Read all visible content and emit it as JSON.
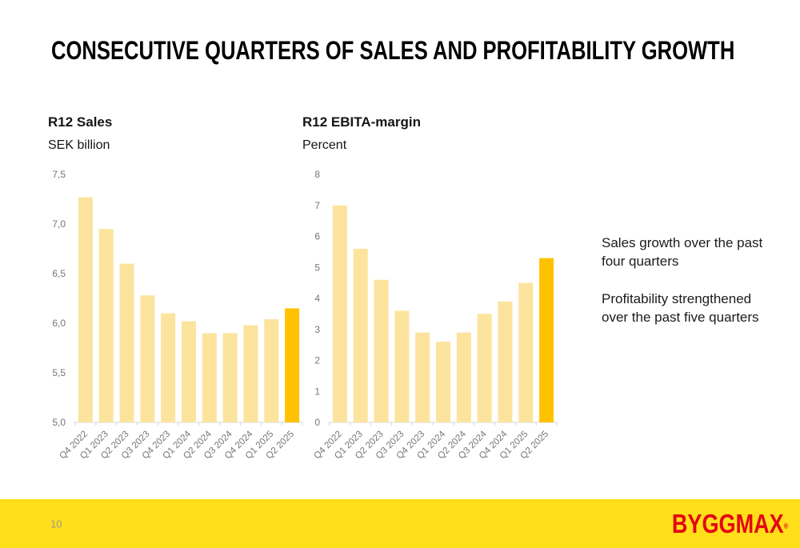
{
  "slide": {
    "title": "CONSECUTIVE QUARTERS OF SALES AND PROFITABILITY GROWTH",
    "page_number": "10",
    "logo_text": "BYGGMAX",
    "logo_registered": "®"
  },
  "commentary": {
    "paragraph1": "Sales growth over the past four quarters",
    "paragraph2": "Profitability strengthened over the past five quarters"
  },
  "colors": {
    "bar": "#FCE49E",
    "bar_highlight": "#FFC100",
    "footer_yellow": "#FFDE1A",
    "logo_red": "#E30613",
    "axis_gray": "#D8D8D8",
    "label_gray": "#757575"
  },
  "chart_data": [
    {
      "type": "bar",
      "title": "R12 Sales",
      "ylabel": "SEK billion",
      "categories": [
        "Q4 2022",
        "Q1 2023",
        "Q2 2023",
        "Q3 2023",
        "Q4 2023",
        "Q1 2024",
        "Q2 2024",
        "Q3 2024",
        "Q4 2024",
        "Q1 2025",
        "Q2 2025"
      ],
      "values": [
        7.27,
        6.95,
        6.6,
        6.28,
        6.1,
        6.02,
        5.9,
        5.9,
        5.98,
        6.04,
        6.15
      ],
      "ylim": [
        5.0,
        7.5
      ],
      "ytick_step": 0.5,
      "ytick_labels": [
        "5,0",
        "5,5",
        "6,0",
        "6,5",
        "7,0",
        "7,5"
      ],
      "highlight_index": 10,
      "grid": false,
      "legend": "none"
    },
    {
      "type": "bar",
      "title": "R12 EBITA-margin",
      "ylabel": "Percent",
      "categories": [
        "Q4 2022",
        "Q1 2023",
        "Q2 2023",
        "Q3 2023",
        "Q4 2023",
        "Q1 2024",
        "Q2 2024",
        "Q3 2024",
        "Q4 2024",
        "Q1 2025",
        "Q2 2025"
      ],
      "values": [
        7.0,
        5.6,
        4.6,
        3.6,
        2.9,
        2.6,
        2.9,
        3.5,
        3.9,
        4.5,
        5.3
      ],
      "ylim": [
        0,
        8
      ],
      "ytick_step": 1,
      "ytick_labels": [
        "0",
        "1",
        "2",
        "3",
        "4",
        "5",
        "6",
        "7",
        "8"
      ],
      "highlight_index": 10,
      "grid": false,
      "legend": "none"
    }
  ]
}
